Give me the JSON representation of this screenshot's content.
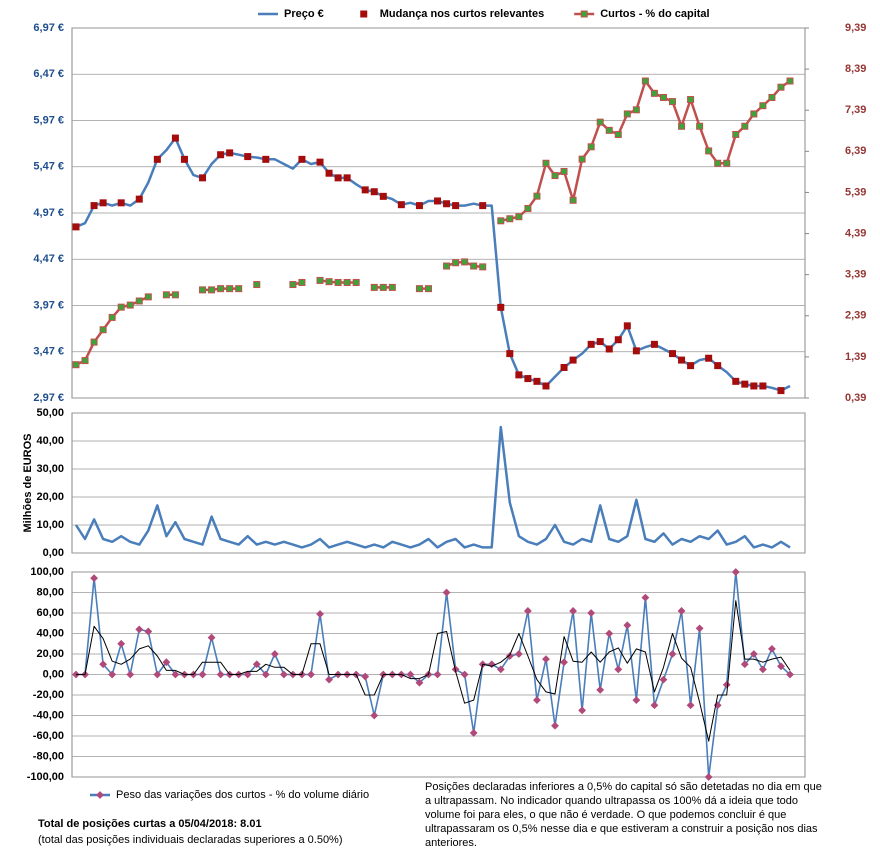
{
  "chart_data": [
    {
      "type": "line",
      "legend": "top",
      "grid": true,
      "ylim": [
        2.97,
        6.97
      ],
      "yticks": [
        {
          "value": 2.97,
          "label": "2,97 €"
        },
        {
          "value": 3.47,
          "label": "3,47 €"
        },
        {
          "value": 3.97,
          "label": "3,97 €"
        },
        {
          "value": 4.47,
          "label": "4,47 €"
        },
        {
          "value": 4.97,
          "label": "4,97 €"
        },
        {
          "value": 5.47,
          "label": "5,47 €"
        },
        {
          "value": 5.97,
          "label": "5,97 €"
        },
        {
          "value": 6.47,
          "label": "6,47 €"
        },
        {
          "value": 6.97,
          "label": "6,97 €"
        }
      ],
      "y2lim": [
        0.39,
        9.39
      ],
      "y2ticks": [
        {
          "value": 0.39,
          "label": "0,39"
        },
        {
          "value": 1.39,
          "label": "1,39"
        },
        {
          "value": 2.39,
          "label": "2,39"
        },
        {
          "value": 3.39,
          "label": "3,39"
        },
        {
          "value": 4.39,
          "label": "4,39"
        },
        {
          "value": 5.39,
          "label": "5,39"
        },
        {
          "value": 6.39,
          "label": "6,39"
        },
        {
          "value": 7.39,
          "label": "7,39"
        },
        {
          "value": 8.39,
          "label": "8,39"
        },
        {
          "value": 9.39,
          "label": "9,39"
        }
      ],
      "series": [
        {
          "name": "Preço €",
          "color": "#4a7ebb",
          "mode": "line",
          "values": [
            4.82,
            4.86,
            5.05,
            5.08,
            5.05,
            5.08,
            5.05,
            5.12,
            5.3,
            5.55,
            5.65,
            5.78,
            5.55,
            5.38,
            5.35,
            5.5,
            5.6,
            5.62,
            5.6,
            5.58,
            5.57,
            5.55,
            5.55,
            5.5,
            5.45,
            5.55,
            5.5,
            5.52,
            5.4,
            5.35,
            5.35,
            5.28,
            5.22,
            5.2,
            5.15,
            5.12,
            5.06,
            5.08,
            5.05,
            5.1,
            5.1,
            5.07,
            5.05,
            5.05,
            5.07,
            5.05,
            5.05,
            3.95,
            3.45,
            3.22,
            3.18,
            3.15,
            3.1,
            3.2,
            3.3,
            3.38,
            3.45,
            3.55,
            3.58,
            3.5,
            3.6,
            3.75,
            3.48,
            3.52,
            3.55,
            3.5,
            3.45,
            3.38,
            3.32,
            3.38,
            3.4,
            3.32,
            3.25,
            3.15,
            3.12,
            3.1,
            3.1,
            3.08,
            3.05,
            3.1
          ]
        },
        {
          "name": "Mudança nos curtos relevantes",
          "color": "#a50d0d",
          "mode": "markers",
          "marker": "square",
          "values": [
            4.82,
            null,
            5.05,
            5.08,
            null,
            5.08,
            null,
            5.12,
            null,
            5.55,
            null,
            5.78,
            5.55,
            null,
            5.35,
            null,
            5.6,
            5.62,
            null,
            5.58,
            null,
            5.55,
            null,
            null,
            null,
            5.55,
            null,
            5.52,
            5.4,
            5.35,
            5.35,
            null,
            5.22,
            5.2,
            5.15,
            null,
            5.06,
            null,
            5.05,
            null,
            5.1,
            5.07,
            5.05,
            null,
            null,
            5.05,
            null,
            3.95,
            3.45,
            3.22,
            3.18,
            3.15,
            3.1,
            null,
            3.3,
            3.38,
            null,
            3.55,
            3.58,
            3.5,
            3.6,
            3.75,
            3.48,
            null,
            3.55,
            null,
            3.45,
            3.38,
            3.32,
            null,
            3.4,
            3.32,
            null,
            3.15,
            3.12,
            3.1,
            3.1,
            null,
            3.05,
            null
          ]
        },
        {
          "name": "Curtos - % do capital",
          "color": "#c0504d",
          "marker_color": "#3fa33a",
          "mode": "line+markers",
          "marker": "square",
          "axis": "y2",
          "values": [
            1.2,
            1.3,
            1.75,
            2.05,
            2.35,
            2.6,
            2.65,
            2.75,
            2.85,
            null,
            2.9,
            2.9,
            null,
            null,
            3.02,
            3.02,
            3.05,
            3.05,
            3.05,
            null,
            3.15,
            null,
            null,
            null,
            3.15,
            3.2,
            null,
            3.25,
            3.22,
            3.2,
            3.2,
            3.2,
            null,
            3.08,
            3.08,
            3.08,
            null,
            null,
            3.05,
            3.05,
            null,
            3.6,
            3.68,
            3.7,
            3.6,
            3.58,
            null,
            4.7,
            4.75,
            4.8,
            5.0,
            5.3,
            6.1,
            5.8,
            5.9,
            5.2,
            6.2,
            6.5,
            7.1,
            6.9,
            6.8,
            7.3,
            7.4,
            8.1,
            7.8,
            7.7,
            7.6,
            7.0,
            7.65,
            7.0,
            6.4,
            6.1,
            6.1,
            6.8,
            7.0,
            7.3,
            7.5,
            7.7,
            7.95,
            8.1
          ]
        }
      ]
    },
    {
      "type": "line",
      "grid": true,
      "y_label": "Milhões de EUROS",
      "ylim": [
        0,
        50
      ],
      "yticks": [
        {
          "value": 0,
          "label": "0,00"
        },
        {
          "value": 10,
          "label": "10,00"
        },
        {
          "value": 20,
          "label": "20,00"
        },
        {
          "value": 30,
          "label": "30,00"
        },
        {
          "value": 40,
          "label": "40,00"
        },
        {
          "value": 50,
          "label": "50,00"
        }
      ],
      "series": [
        {
          "color": "#4a7ebb",
          "mode": "line",
          "values": [
            10,
            5,
            12,
            5,
            4,
            6,
            4,
            3,
            8,
            17,
            6,
            11,
            5,
            4,
            3,
            13,
            5,
            4,
            3,
            6,
            3,
            4,
            3,
            4,
            3,
            2,
            3,
            5,
            2,
            3,
            4,
            3,
            2,
            3,
            2,
            4,
            3,
            2,
            3,
            5,
            2,
            4,
            5,
            2,
            3,
            2,
            2,
            45,
            18,
            6,
            4,
            3,
            5,
            10,
            4,
            3,
            5,
            4,
            17,
            5,
            4,
            6,
            19,
            5,
            4,
            7,
            3,
            5,
            4,
            6,
            5,
            8,
            3,
            4,
            6,
            2,
            3,
            2,
            4,
            2
          ]
        }
      ]
    },
    {
      "type": "line",
      "legend": "bottom-left",
      "grid": true,
      "ylim": [
        -100,
        100
      ],
      "yticks": [
        {
          "value": -100,
          "label": "-100,00"
        },
        {
          "value": -80,
          "label": "-80,00"
        },
        {
          "value": -60,
          "label": "-60,00"
        },
        {
          "value": -40,
          "label": "-40,00"
        },
        {
          "value": -20,
          "label": "-20,00"
        },
        {
          "value": 0,
          "label": "0,00"
        },
        {
          "value": 20,
          "label": "20,00"
        },
        {
          "value": 40,
          "label": "40,00"
        },
        {
          "value": 60,
          "label": "60,00"
        },
        {
          "value": 80,
          "label": "80,00"
        },
        {
          "value": 100,
          "label": "100,00"
        }
      ],
      "series": [
        {
          "name": "Peso das variações dos curtos - % do volume diário",
          "color": "#4a7ebb",
          "marker_color": "#b04a7a",
          "mode": "line+markers",
          "marker": "diamond",
          "values": [
            0,
            0,
            94,
            10,
            0,
            30,
            0,
            44,
            42,
            0,
            12,
            0,
            0,
            0,
            0,
            36,
            0,
            0,
            0,
            0,
            10,
            0,
            20,
            0,
            0,
            0,
            0,
            59,
            -5,
            0,
            0,
            0,
            -2,
            -40,
            0,
            0,
            0,
            0,
            -8,
            0,
            0,
            80,
            5,
            0,
            -57,
            10,
            10,
            5,
            18,
            20,
            62,
            -25,
            15,
            -50,
            12,
            62,
            -35,
            60,
            -15,
            40,
            5,
            48,
            -25,
            75,
            -30,
            -5,
            20,
            62,
            -30,
            45,
            -100,
            -30,
            -10,
            100,
            10,
            20,
            5,
            25,
            8,
            0
          ]
        },
        {
          "color": "#000000",
          "mode": "line",
          "values": [
            0,
            0,
            47,
            35,
            13,
            10,
            15,
            25,
            28,
            18,
            4,
            4,
            0,
            0,
            12,
            12,
            12,
            0,
            0,
            3,
            3,
            10,
            7,
            7,
            0,
            0,
            30,
            30,
            0,
            0,
            0,
            0,
            -20,
            -20,
            0,
            0,
            0,
            -4,
            -4,
            0,
            40,
            42,
            3,
            -28,
            -25,
            10,
            8,
            12,
            19,
            40,
            18,
            -5,
            -17,
            -19,
            37,
            13,
            12,
            22,
            12,
            22,
            26,
            11,
            25,
            22,
            -17,
            7,
            40,
            16,
            7,
            -27,
            -65,
            -20,
            -20,
            72,
            15,
            15,
            12,
            15,
            17,
            4
          ]
        }
      ]
    }
  ],
  "footer": {
    "total": "Total de posições curtas a 05/04/2018:  8.01",
    "total_note": "(total das posições individuais declaradas superiores a 0.50%)",
    "explanation": "Posições declaradas inferiores a 0,5% do capital só são detetadas no dia em que a ultrapassam.  No indicador quando ultrapassa os 100% dá a ideia que todo volume foi para eles, o que não é verdade.  O que podemos concluir é que ultrapassaram os 0,5% nesse dia e que estiveram a construir a posição nos dias anteriores."
  }
}
